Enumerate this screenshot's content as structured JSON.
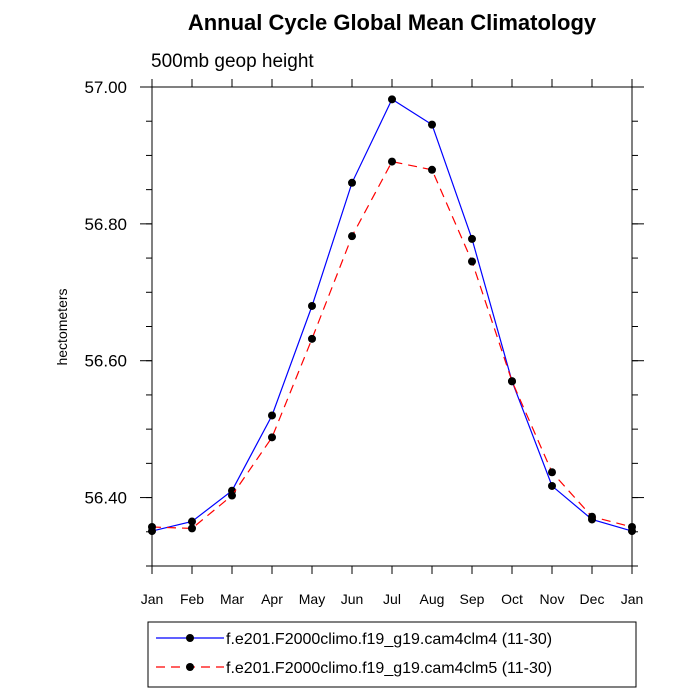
{
  "chart_data": {
    "type": "line",
    "title": "Annual Cycle Global Mean Climatology",
    "subtitle": "500mb geop height",
    "ylabel": "hectometers",
    "xlabel": "",
    "categories": [
      "Jan",
      "Feb",
      "Mar",
      "Apr",
      "May",
      "Jun",
      "Jul",
      "Aug",
      "Sep",
      "Oct",
      "Nov",
      "Dec",
      "Jan"
    ],
    "ylim": [
      56.3,
      57.0
    ],
    "yticks": [
      56.4,
      56.6,
      56.8,
      57.0
    ],
    "ytick_labels": [
      "56.40",
      "56.60",
      "56.80",
      "57.00"
    ],
    "yminor_step": 0.05,
    "grid": false,
    "legend_position": "bottom",
    "series": [
      {
        "name": "f.e201.F2000climo.f19_g19.cam4clm4 (11-30)",
        "color": "#0000ff",
        "dash": "solid",
        "values": [
          56.351,
          56.365,
          56.41,
          56.52,
          56.68,
          56.86,
          56.982,
          56.945,
          56.778,
          56.57,
          56.417,
          56.368,
          56.351
        ]
      },
      {
        "name": "f.e201.F2000climo.f19_g19.cam4clm5 (11-30)",
        "color": "#ff0000",
        "dash": "dashed",
        "values": [
          56.357,
          56.355,
          56.403,
          56.488,
          56.632,
          56.782,
          56.891,
          56.879,
          56.745,
          56.57,
          56.437,
          56.372,
          56.357
        ]
      }
    ]
  }
}
